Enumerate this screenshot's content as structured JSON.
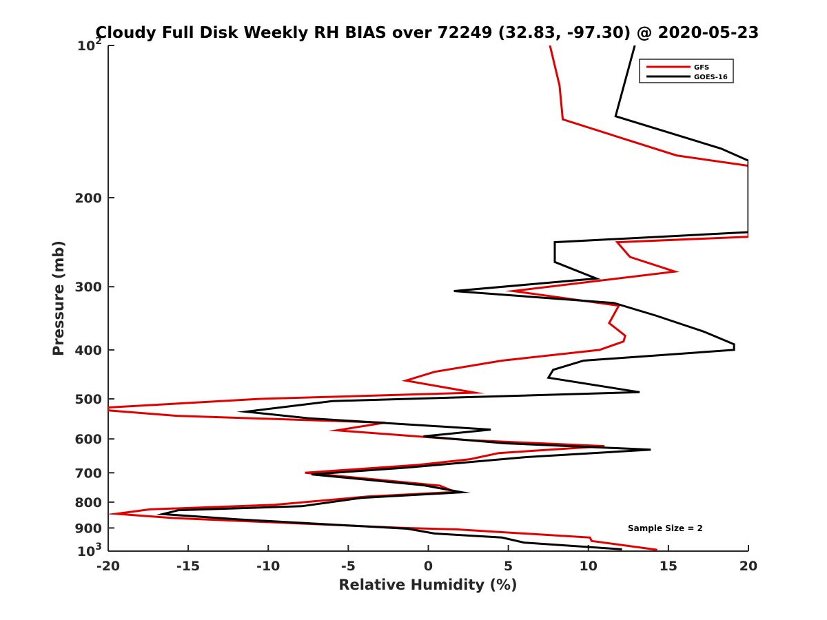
{
  "chart_data": {
    "type": "line",
    "title": "Cloudy Full Disk Weekly RH BIAS over 72249 (32.83, -97.30) @ 2020-05-23",
    "xlabel": "Relative Humidity (%)",
    "ylabel": "Pressure (mb)",
    "xlim": [
      -20,
      20
    ],
    "ylim": [
      1000,
      100
    ],
    "yscale": "log",
    "y_reversed": true,
    "grid": false,
    "legend_position": "top-right",
    "x_ticks": [
      -20,
      -15,
      -10,
      -5,
      0,
      5,
      10,
      15,
      20
    ],
    "x_tick_labels": [
      "-20",
      "-15",
      "-10",
      "-5",
      "0",
      "5",
      "10",
      "15",
      "20"
    ],
    "y_ticks": [
      100,
      200,
      300,
      400,
      500,
      600,
      700,
      800,
      900,
      1000
    ],
    "y_tick_labels": [
      {
        "base": "10",
        "exp": "2"
      },
      {
        "text": "200"
      },
      {
        "text": "300"
      },
      {
        "text": "400"
      },
      {
        "text": "500"
      },
      {
        "text": "600"
      },
      {
        "text": "700"
      },
      {
        "text": "800"
      },
      {
        "text": "900"
      },
      {
        "base": "10",
        "exp": "3"
      }
    ],
    "annotation": "Sample Size = 2",
    "series": [
      {
        "name": "GFS",
        "color": "#e00000",
        "points": [
          [
            7.6,
            100
          ],
          [
            8.2,
            120
          ],
          [
            8.4,
            140
          ],
          [
            15.5,
            165
          ],
          [
            20,
            173
          ],
          [
            20,
            239
          ],
          [
            11.8,
            245
          ],
          [
            12.6,
            262
          ],
          [
            15.4,
            280
          ],
          [
            5.3,
            306
          ],
          [
            11.9,
            327
          ],
          [
            11.3,
            354
          ],
          [
            12.3,
            375
          ],
          [
            12.2,
            385
          ],
          [
            10.7,
            400
          ],
          [
            4.6,
            420
          ],
          [
            0.4,
            442
          ],
          [
            -1.4,
            460
          ],
          [
            2.9,
            486
          ],
          [
            -10.5,
            500
          ],
          [
            -20,
            520
          ],
          [
            -20,
            527
          ],
          [
            -15.7,
            540
          ],
          [
            -2.7,
            557
          ],
          [
            -5.7,
            577
          ],
          [
            2.4,
            603
          ],
          [
            11.0,
            620
          ],
          [
            4.4,
            640
          ],
          [
            2.6,
            658
          ],
          [
            -0.6,
            675
          ],
          [
            -7.7,
            700
          ],
          [
            0.7,
            742
          ],
          [
            1.7,
            764
          ],
          [
            -3.8,
            780
          ],
          [
            -9.6,
            810
          ],
          [
            -17.4,
            827
          ],
          [
            -19.5,
            844
          ],
          [
            -16.0,
            860
          ],
          [
            -1.5,
            900
          ],
          [
            1.8,
            906
          ],
          [
            10.1,
            940
          ],
          [
            10.2,
            955
          ],
          [
            14.3,
            994
          ]
        ]
      },
      {
        "name": "GOES-16",
        "color": "#000000",
        "points": [
          [
            12.9,
            100
          ],
          [
            11.7,
            138
          ],
          [
            18.3,
            160
          ],
          [
            20,
            169
          ],
          [
            20,
            234
          ],
          [
            7.9,
            245
          ],
          [
            7.9,
            268
          ],
          [
            10.5,
            289
          ],
          [
            1.6,
            306
          ],
          [
            11.6,
            323
          ],
          [
            14.2,
            342
          ],
          [
            17.2,
            368
          ],
          [
            19.1,
            390
          ],
          [
            19.1,
            400
          ],
          [
            9.7,
            420
          ],
          [
            7.8,
            438
          ],
          [
            7.5,
            454
          ],
          [
            13.2,
            485
          ],
          [
            -6.0,
            505
          ],
          [
            -11.4,
            530
          ],
          [
            -7.5,
            546
          ],
          [
            3.9,
            575
          ],
          [
            -0.3,
            593
          ],
          [
            4.8,
            612
          ],
          [
            13.9,
            630
          ],
          [
            6.0,
            652
          ],
          [
            -1.2,
            683
          ],
          [
            -7.3,
            705
          ],
          [
            -0.3,
            741
          ],
          [
            2.1,
            765
          ],
          [
            -4.2,
            785
          ],
          [
            -7.9,
            815
          ],
          [
            -15.6,
            830
          ],
          [
            -16.6,
            845
          ],
          [
            -12.0,
            865
          ],
          [
            -1.3,
            903
          ],
          [
            0.4,
            923
          ],
          [
            4.6,
            940
          ],
          [
            6.0,
            962
          ],
          [
            12.1,
            992
          ]
        ]
      }
    ]
  }
}
